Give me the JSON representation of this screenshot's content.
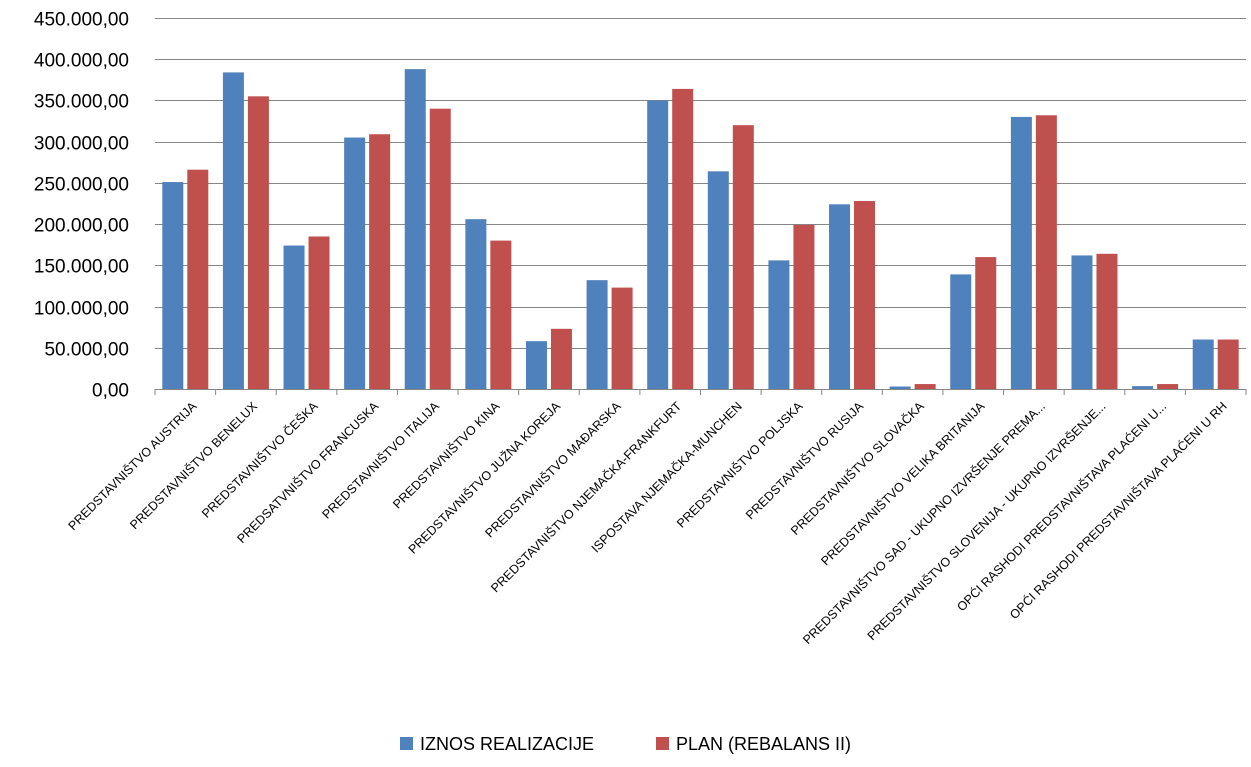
{
  "chart_data": {
    "type": "bar",
    "title": "",
    "xlabel": "",
    "ylabel": "",
    "ylim": [
      0,
      450000
    ],
    "ytick_step": 50000,
    "y_tick_labels": [
      "0,00",
      "50.000,00",
      "100.000,00",
      "150.000,00",
      "200.000,00",
      "250.000,00",
      "300.000,00",
      "350.000,00",
      "400.000,00",
      "450.000,00"
    ],
    "grid": true,
    "legend_position": "bottom",
    "categories": [
      "PREDSTAVNIŠTVO AUSTRIJA",
      "PREDSTAVNIŠTVO BENELUX",
      "PREDSTAVNIŠTVO ČEŠKA",
      "PREDSATVNIŠTVO FRANCUSKA",
      "PREDSTAVNIŠTVO ITALIJA",
      "PREDSTAVNIŠTVO KINA",
      "PREDSTAVNIŠTVO JUŽNA KOREJA",
      "PREDSTAVNIŠTVO MAĐARSKA",
      "PREDSTAVNIŠTVO NJEMAČKA-FRANKFURT",
      "ISPOSTAVA NJEMAČKA-MUNCHEN",
      "PREDSTAVNIŠTVO POLJSKA",
      "PREDSTAVNIŠTVO RUSIJA",
      "PREDSTAVNIŠTVO SLOVAČKA",
      "PREDSTAVNIŠTVO VELIKA BRITANIJA",
      "PREDSTAVNIŠTVO SAD - UKUPNO IZVRŠENJE PREMA...",
      "PREDSTAVNIŠTVO SLOVENIJA - UKUPNO IZVRŠENJE...",
      "OPĆI RASHODI PREDSTAVNIŠTAVA PLAĆENI U...",
      "OPĆI RASHODI PREDSTAVNIŠTAVA PLAĆENI U RH"
    ],
    "series": [
      {
        "name": "IZNOS REALIZACIJE",
        "color": "#4f81bd",
        "values": [
          251000,
          384000,
          174000,
          305000,
          388000,
          206000,
          58000,
          132000,
          350000,
          264000,
          156000,
          224000,
          3000,
          139000,
          330000,
          162000,
          3500,
          60000
        ]
      },
      {
        "name": "PLAN (REBALANS II)",
        "color": "#c0504d",
        "values": [
          266000,
          355000,
          185000,
          309000,
          340000,
          180000,
          73000,
          123000,
          364000,
          320000,
          199000,
          228000,
          6000,
          160000,
          332000,
          164000,
          6000,
          60000
        ]
      }
    ]
  }
}
